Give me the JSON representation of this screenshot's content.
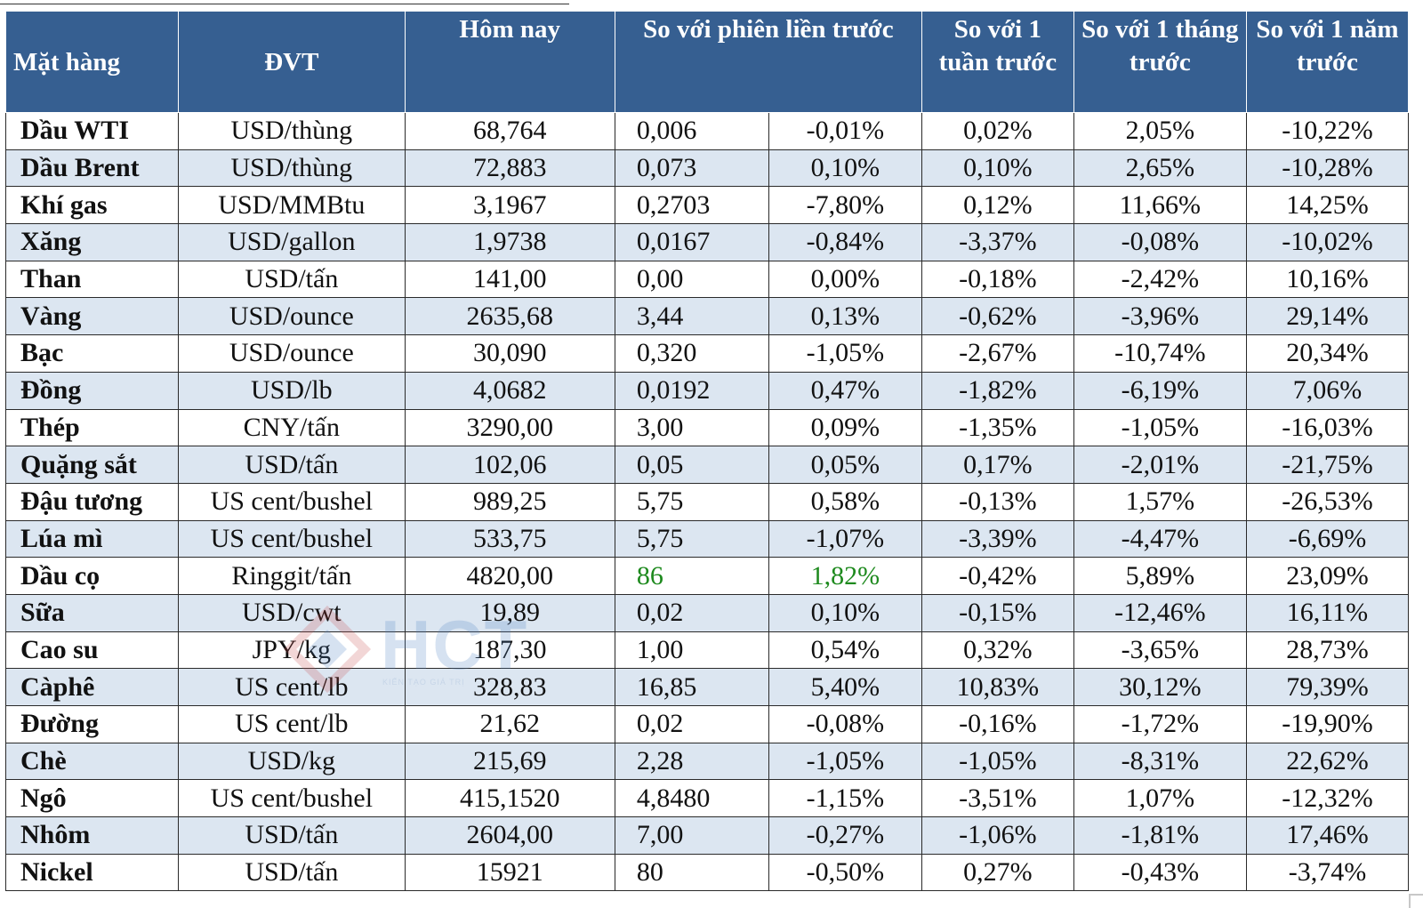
{
  "header": {
    "item": "Mặt hàng",
    "unit": "ĐVT",
    "today": "Hôm nay",
    "prev_session": "So với phiên liền trước",
    "week": "So với 1 tuần trước",
    "month": "So với 1 tháng trước",
    "year": "So với 1 năm trước"
  },
  "watermark": {
    "brand": "HCT",
    "tagline": "KIẾN TẠO GIÁ TRỊ"
  },
  "rows": [
    {
      "name": "Dầu WTI",
      "unit": "USD/thùng",
      "today": "68,764",
      "chg_abs": "0,006",
      "chg_pct": "-0,01%",
      "week": "0,02%",
      "month": "2,05%",
      "year": "-10,22%"
    },
    {
      "name": "Dầu Brent",
      "unit": "USD/thùng",
      "today": "72,883",
      "chg_abs": "0,073",
      "chg_pct": "0,10%",
      "week": "0,10%",
      "month": "2,65%",
      "year": "-10,28%"
    },
    {
      "name": "Khí gas",
      "unit": "USD/MMBtu",
      "today": "3,1967",
      "chg_abs": "0,2703",
      "chg_pct": "-7,80%",
      "week": "0,12%",
      "month": "11,66%",
      "year": "14,25%"
    },
    {
      "name": "Xăng",
      "unit": "USD/gallon",
      "today": "1,9738",
      "chg_abs": "0,0167",
      "chg_pct": "-0,84%",
      "week": "-3,37%",
      "month": "-0,08%",
      "year": "-10,02%"
    },
    {
      "name": "Than",
      "unit": "USD/tấn",
      "today": "141,00",
      "chg_abs": "0,00",
      "chg_pct": "0,00%",
      "week": "-0,18%",
      "month": "-2,42%",
      "year": "10,16%"
    },
    {
      "name": "Vàng",
      "unit": "USD/ounce",
      "today": "2635,68",
      "chg_abs": "3,44",
      "chg_pct": "0,13%",
      "week": "-0,62%",
      "month": "-3,96%",
      "year": "29,14%"
    },
    {
      "name": "Bạc",
      "unit": "USD/ounce",
      "today": "30,090",
      "chg_abs": "0,320",
      "chg_pct": "-1,05%",
      "week": "-2,67%",
      "month": "-10,74%",
      "year": "20,34%"
    },
    {
      "name": "Đồng",
      "unit": "USD/lb",
      "today": "4,0682",
      "chg_abs": "0,0192",
      "chg_pct": "0,47%",
      "week": "-1,82%",
      "month": "-6,19%",
      "year": "7,06%"
    },
    {
      "name": "Thép",
      "unit": "CNY/tấn",
      "today": "3290,00",
      "chg_abs": "3,00",
      "chg_pct": "0,09%",
      "week": "-1,35%",
      "month": "-1,05%",
      "year": "-16,03%"
    },
    {
      "name": "Quặng sắt",
      "unit": "USD/tấn",
      "today": "102,06",
      "chg_abs": "0,05",
      "chg_pct": "0,05%",
      "week": "0,17%",
      "month": "-2,01%",
      "year": "-21,75%"
    },
    {
      "name": "Đậu tương",
      "unit": "US cent/bushel",
      "today": "989,25",
      "chg_abs": "5,75",
      "chg_pct": "0,58%",
      "week": "-0,13%",
      "month": "1,57%",
      "year": "-26,53%"
    },
    {
      "name": "Lúa mì",
      "unit": "US cent/bushel",
      "today": "533,75",
      "chg_abs": "5,75",
      "chg_pct": "-1,07%",
      "week": "-3,39%",
      "month": "-4,47%",
      "year": "-6,69%"
    },
    {
      "name": "Dầu cọ",
      "unit": "Ringgit/tấn",
      "today": "4820,00",
      "chg_abs": "86",
      "chg_pct": "1,82%",
      "week": "-0,42%",
      "month": "5,89%",
      "year": "23,09%",
      "highlight": true
    },
    {
      "name": "Sữa",
      "unit": "USD/cwt",
      "today": "19,89",
      "chg_abs": "0,02",
      "chg_pct": "0,10%",
      "week": "-0,15%",
      "month": "-12,46%",
      "year": "16,11%"
    },
    {
      "name": "Cao su",
      "unit": "JPY/kg",
      "today": "187,30",
      "chg_abs": "1,00",
      "chg_pct": "0,54%",
      "week": "0,32%",
      "month": "-3,65%",
      "year": "28,73%"
    },
    {
      "name": "Càphê",
      "unit": "US cent/lb",
      "today": "328,83",
      "chg_abs": "16,85",
      "chg_pct": "5,40%",
      "week": "10,83%",
      "month": "30,12%",
      "year": "79,39%"
    },
    {
      "name": "Đường",
      "unit": "US cent/lb",
      "today": "21,62",
      "chg_abs": "0,02",
      "chg_pct": "-0,08%",
      "week": "-0,16%",
      "month": "-1,72%",
      "year": "-19,90%"
    },
    {
      "name": "Chè",
      "unit": "USD/kg",
      "today": "215,69",
      "chg_abs": "2,28",
      "chg_pct": "-1,05%",
      "week": "-1,05%",
      "month": "-8,31%",
      "year": "22,62%"
    },
    {
      "name": "Ngô",
      "unit": "US cent/bushel",
      "today": "415,1520",
      "chg_abs": "4,8480",
      "chg_pct": "-1,15%",
      "week": "-3,51%",
      "month": "1,07%",
      "year": "-12,32%"
    },
    {
      "name": "Nhôm",
      "unit": "USD/tấn",
      "today": "2604,00",
      "chg_abs": "7,00",
      "chg_pct": "-0,27%",
      "week": "-1,06%",
      "month": "-1,81%",
      "year": "17,46%"
    },
    {
      "name": "Nickel",
      "unit": "USD/tấn",
      "today": "15921",
      "chg_abs": "80",
      "chg_pct": "-0,50%",
      "week": "0,27%",
      "month": "-0,43%",
      "year": "-3,74%"
    }
  ]
}
